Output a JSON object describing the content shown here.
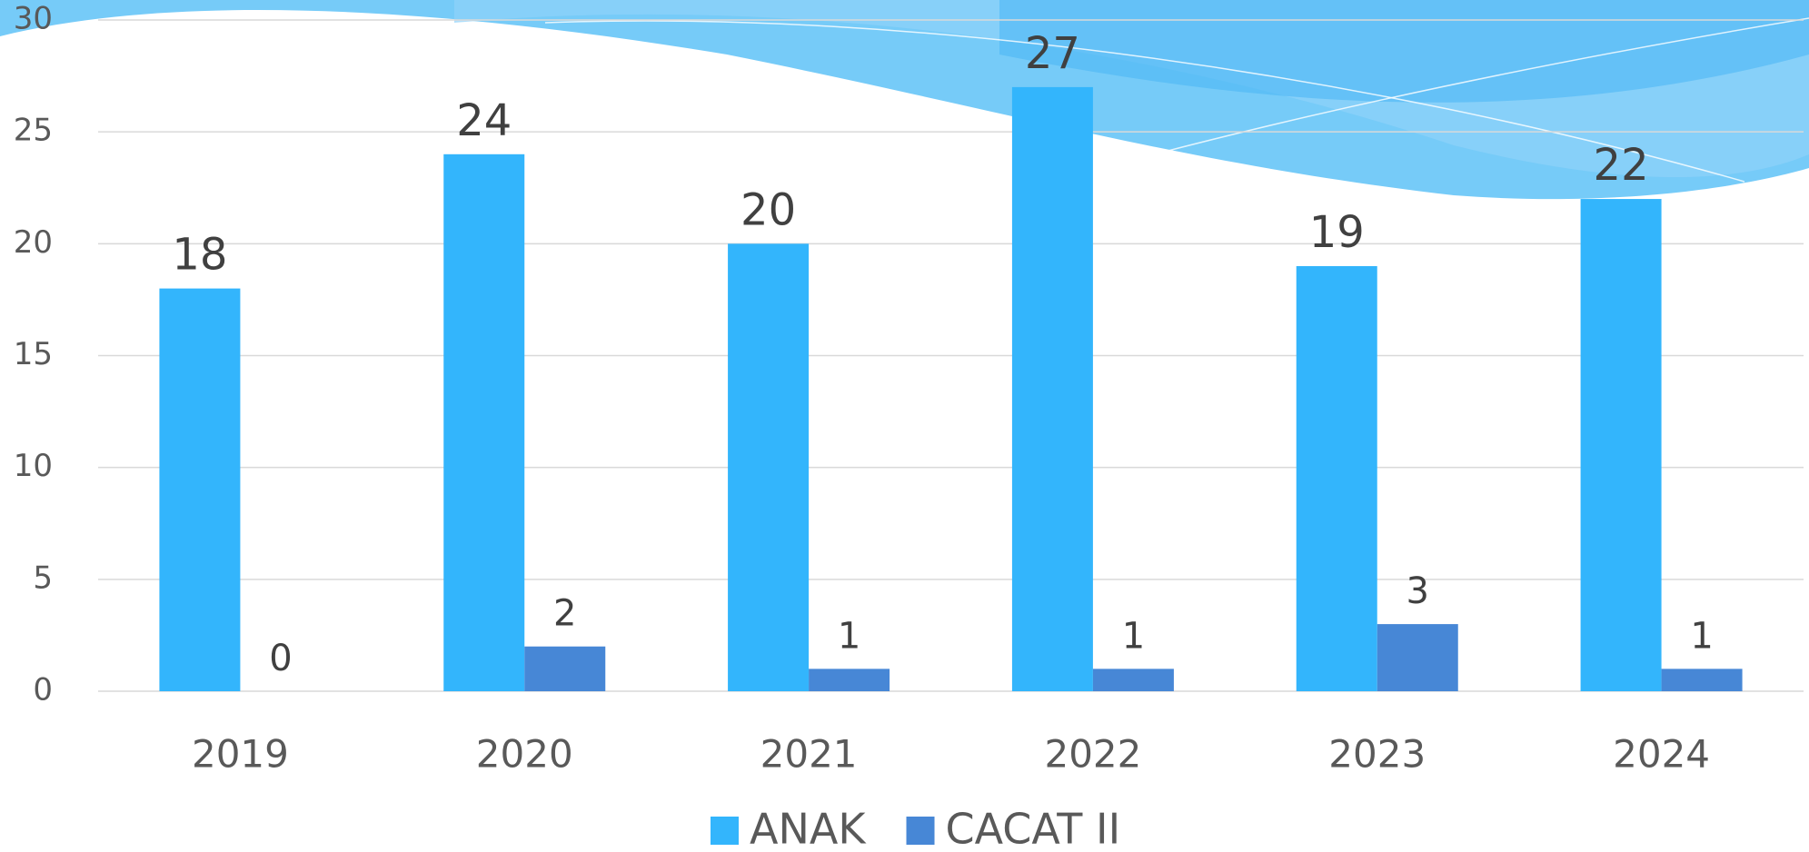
{
  "chart_data": {
    "type": "bar",
    "categories": [
      "2019",
      "2020",
      "2021",
      "2022",
      "2023",
      "2024"
    ],
    "series": [
      {
        "name": "ANAK",
        "color": "#33b5fc",
        "values": [
          18,
          24,
          20,
          27,
          19,
          22
        ]
      },
      {
        "name": "CACAT II",
        "color": "#4787d6",
        "values": [
          0,
          2,
          1,
          1,
          3,
          1
        ]
      }
    ],
    "ylim": [
      0,
      30
    ],
    "yticks": [
      0,
      5,
      10,
      15,
      20,
      25,
      30
    ],
    "grid": true,
    "legend": "bottom"
  }
}
